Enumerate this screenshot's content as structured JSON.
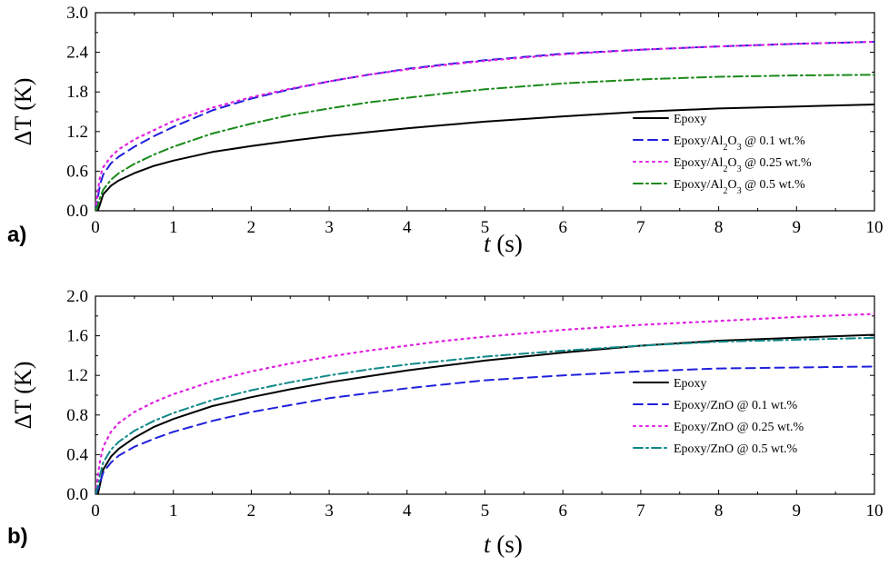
{
  "chart_data": [
    {
      "type": "line",
      "panel_label": "a)",
      "xlabel": "t (s)",
      "ylabel": "ΔT (K)",
      "xlim": [
        0,
        10
      ],
      "ylim": [
        0,
        3.0
      ],
      "xticks": [
        "0",
        "1",
        "2",
        "3",
        "4",
        "5",
        "6",
        "7",
        "8",
        "9",
        "10"
      ],
      "yticks": [
        "0.0",
        "0.6",
        "1.2",
        "1.8",
        "2.4",
        "3.0"
      ],
      "grid": false,
      "legend_position": "bottom-right",
      "x": [
        0,
        0.03,
        0.06,
        0.1,
        0.2,
        0.3,
        0.5,
        0.75,
        1,
        1.5,
        2,
        2.5,
        3,
        3.5,
        4,
        4.5,
        5,
        6,
        7,
        8,
        9,
        10
      ],
      "series": [
        {
          "name": "Epoxy",
          "name_parts": [
            "Epoxy",
            "",
            ""
          ],
          "color": "#000000",
          "dash": "solid",
          "values": [
            0.0,
            0.0,
            0.1,
            0.25,
            0.38,
            0.46,
            0.57,
            0.68,
            0.76,
            0.89,
            0.98,
            1.06,
            1.13,
            1.19,
            1.25,
            1.3,
            1.35,
            1.43,
            1.5,
            1.55,
            1.58,
            1.61
          ]
        },
        {
          "name": "Epoxy/Al2O3 @ 0.1 wt.%",
          "name_parts": [
            "Epoxy/Al",
            "2",
            "O",
            "3",
            " @ 0.1 wt.%"
          ],
          "color": "#1f1fdc",
          "dash": "dashed",
          "values": [
            0.0,
            0.2,
            0.4,
            0.55,
            0.72,
            0.82,
            0.97,
            1.13,
            1.27,
            1.52,
            1.7,
            1.84,
            1.96,
            2.06,
            2.15,
            2.22,
            2.28,
            2.38,
            2.44,
            2.49,
            2.53,
            2.56
          ]
        },
        {
          "name": "Epoxy/Al2O3 @ 0.25 wt.%",
          "name_parts": [
            "Epoxy/Al",
            "2",
            "O",
            "3",
            " @ 0.25 wt.%"
          ],
          "color": "#e020e0",
          "dash": "dotted",
          "values": [
            0.0,
            0.3,
            0.52,
            0.66,
            0.82,
            0.93,
            1.08,
            1.22,
            1.36,
            1.56,
            1.72,
            1.85,
            1.96,
            2.06,
            2.14,
            2.21,
            2.27,
            2.37,
            2.44,
            2.49,
            2.53,
            2.56
          ]
        },
        {
          "name": "Epoxy/Al2O3 @ 0.5 wt.%",
          "name_parts": [
            "Epoxy/Al",
            "2",
            "O",
            "3",
            " @ 0.5 wt.%"
          ],
          "color": "#1a8a1a",
          "dash": "dashdot",
          "values": [
            0.0,
            0.08,
            0.2,
            0.32,
            0.47,
            0.57,
            0.71,
            0.85,
            0.97,
            1.17,
            1.32,
            1.45,
            1.55,
            1.64,
            1.71,
            1.78,
            1.84,
            1.93,
            1.99,
            2.03,
            2.05,
            2.06
          ]
        }
      ]
    },
    {
      "type": "line",
      "panel_label": "b)",
      "xlabel": "t (s)",
      "ylabel": "ΔT (K)",
      "xlim": [
        0,
        10
      ],
      "ylim": [
        0,
        2.0
      ],
      "xticks": [
        "0",
        "1",
        "2",
        "3",
        "4",
        "5",
        "6",
        "7",
        "8",
        "9",
        "10"
      ],
      "yticks": [
        "0.0",
        "0.4",
        "0.8",
        "1.2",
        "1.6",
        "2.0"
      ],
      "grid": false,
      "legend_position": "bottom-right",
      "x": [
        0,
        0.03,
        0.06,
        0.1,
        0.2,
        0.3,
        0.5,
        0.75,
        1,
        1.5,
        2,
        2.5,
        3,
        3.5,
        4,
        4.5,
        5,
        6,
        7,
        8,
        9,
        10
      ],
      "series": [
        {
          "name": "Epoxy",
          "name_parts": [
            "Epoxy",
            "",
            ""
          ],
          "color": "#000000",
          "dash": "solid",
          "values": [
            0.0,
            0.0,
            0.1,
            0.25,
            0.38,
            0.46,
            0.57,
            0.68,
            0.76,
            0.89,
            0.98,
            1.06,
            1.13,
            1.19,
            1.25,
            1.3,
            1.35,
            1.43,
            1.5,
            1.55,
            1.58,
            1.61
          ]
        },
        {
          "name": "Epoxy/ZnO @ 0.1 wt.%",
          "name_parts": [
            "Epoxy/ZnO @ 0.1 wt.%",
            "",
            ""
          ],
          "color": "#1f1fdc",
          "dash": "dashed",
          "values": [
            0.0,
            0.05,
            0.12,
            0.22,
            0.32,
            0.39,
            0.48,
            0.56,
            0.63,
            0.74,
            0.83,
            0.9,
            0.97,
            1.02,
            1.07,
            1.11,
            1.15,
            1.2,
            1.24,
            1.27,
            1.28,
            1.29
          ]
        },
        {
          "name": "Epoxy/ZnO @ 0.25 wt.%",
          "name_parts": [
            "Epoxy/ZnO @ 0.25 wt.%",
            "",
            ""
          ],
          "color": "#e020e0",
          "dash": "dotted",
          "values": [
            0.0,
            0.18,
            0.34,
            0.48,
            0.63,
            0.72,
            0.83,
            0.93,
            1.01,
            1.14,
            1.24,
            1.32,
            1.39,
            1.45,
            1.5,
            1.55,
            1.59,
            1.66,
            1.71,
            1.75,
            1.79,
            1.82
          ]
        },
        {
          "name": "Epoxy/ZnO @ 0.5 wt.%",
          "name_parts": [
            "Epoxy/ZnO @ 0.5 wt.%",
            "",
            ""
          ],
          "color": "#118888",
          "dash": "dashdot",
          "values": [
            0.0,
            0.08,
            0.2,
            0.32,
            0.45,
            0.53,
            0.64,
            0.74,
            0.82,
            0.95,
            1.05,
            1.13,
            1.2,
            1.26,
            1.31,
            1.35,
            1.39,
            1.45,
            1.5,
            1.54,
            1.56,
            1.58
          ]
        }
      ]
    }
  ]
}
